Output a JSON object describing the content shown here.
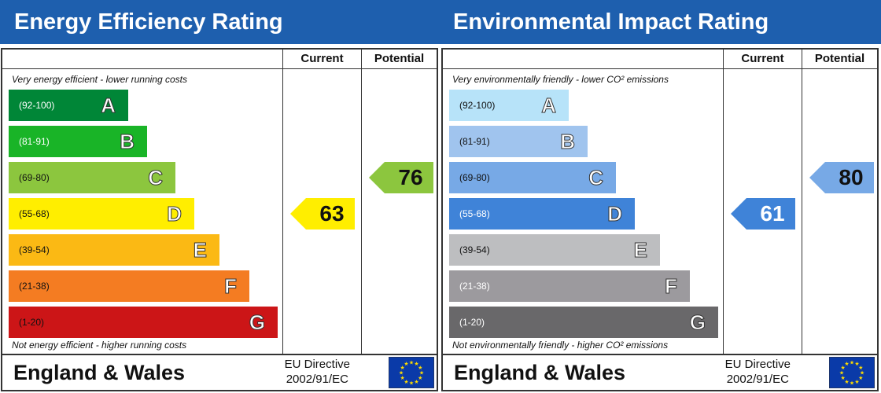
{
  "panels": [
    {
      "title": "Energy Efficiency Rating",
      "col_current": "Current",
      "col_potential": "Potential",
      "top_note": "Very energy efficient - lower running costs",
      "bottom_note": "Not energy efficient - higher running costs",
      "bands": [
        {
          "range": "(92-100)",
          "letter": "A",
          "color": "#008637"
        },
        {
          "range": "(81-91)",
          "letter": "B",
          "color": "#19b427"
        },
        {
          "range": "(69-80)",
          "letter": "C",
          "color": "#8cc63e"
        },
        {
          "range": "(55-68)",
          "letter": "D",
          "color": "#ffee00"
        },
        {
          "range": "(39-54)",
          "letter": "E",
          "color": "#fbb914"
        },
        {
          "range": "(21-38)",
          "letter": "F",
          "color": "#f47c22"
        },
        {
          "range": "(1-20)",
          "letter": "G",
          "color": "#cc1517"
        }
      ],
      "current": {
        "value": "63",
        "color": "#ffee00",
        "text_color": "#111111"
      },
      "potential": {
        "value": "76",
        "color": "#8cc63e",
        "text_color": "#111111"
      },
      "footer": "England & Wales",
      "eu_line1": "EU Directive",
      "eu_line2": "2002/91/EC"
    },
    {
      "title": "Environmental Impact Rating",
      "col_current": "Current",
      "col_potential": "Potential",
      "top_note": "Very environmentally friendly - lower CO² emissions",
      "bottom_note": "Not environmentally friendly - higher CO² emissions",
      "bands": [
        {
          "range": "(92-100)",
          "letter": "A",
          "color": "#b7e3f9"
        },
        {
          "range": "(81-91)",
          "letter": "B",
          "color": "#a0c4ee"
        },
        {
          "range": "(69-80)",
          "letter": "C",
          "color": "#77a9e6"
        },
        {
          "range": "(55-68)",
          "letter": "D",
          "color": "#3f83d8"
        },
        {
          "range": "(39-54)",
          "letter": "E",
          "color": "#bdbec0"
        },
        {
          "range": "(21-38)",
          "letter": "F",
          "color": "#9c9a9e"
        },
        {
          "range": "(1-20)",
          "letter": "G",
          "color": "#69686a"
        }
      ],
      "current": {
        "value": "61",
        "color": "#3f83d8",
        "text_color": "#ffffff"
      },
      "potential": {
        "value": "80",
        "color": "#77a9e6",
        "text_color": "#111111"
      },
      "footer": "England & Wales",
      "eu_line1": "EU Directive",
      "eu_line2": "2002/91/EC"
    }
  ],
  "chart_data": [
    {
      "type": "bar",
      "title": "Energy Efficiency Rating",
      "categories": [
        "A",
        "B",
        "C",
        "D",
        "E",
        "F",
        "G"
      ],
      "ranges": [
        "(92-100)",
        "(81-91)",
        "(69-80)",
        "(55-68)",
        "(39-54)",
        "(21-38)",
        "(1-20)"
      ],
      "series": [
        {
          "name": "Current",
          "value": 63,
          "band": "D"
        },
        {
          "name": "Potential",
          "value": 76,
          "band": "C"
        }
      ]
    },
    {
      "type": "bar",
      "title": "Environmental Impact Rating",
      "categories": [
        "A",
        "B",
        "C",
        "D",
        "E",
        "F",
        "G"
      ],
      "ranges": [
        "(92-100)",
        "(81-91)",
        "(69-80)",
        "(55-68)",
        "(39-54)",
        "(21-38)",
        "(1-20)"
      ],
      "series": [
        {
          "name": "Current",
          "value": 61,
          "band": "D"
        },
        {
          "name": "Potential",
          "value": 80,
          "band": "C"
        }
      ]
    }
  ]
}
